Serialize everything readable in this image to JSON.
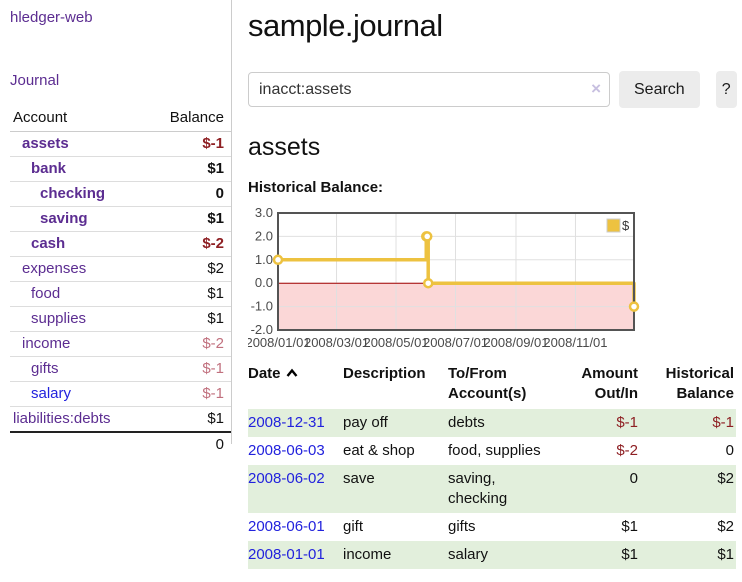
{
  "app": {
    "brand": "hledger-web",
    "nav": {
      "journal": "Journal"
    }
  },
  "sidebar": {
    "header": {
      "account": "Account",
      "balance": "Balance"
    },
    "accounts": [
      {
        "name": "assets",
        "balance": "$-1"
      },
      {
        "name": "bank",
        "balance": "$1"
      },
      {
        "name": "checking",
        "balance": "0"
      },
      {
        "name": "saving",
        "balance": "$1"
      },
      {
        "name": "cash",
        "balance": "$-2"
      },
      {
        "name": "expenses",
        "balance": "$2"
      },
      {
        "name": "food",
        "balance": "$1"
      },
      {
        "name": "supplies",
        "balance": "$1"
      },
      {
        "name": "income",
        "balance": "$-2"
      },
      {
        "name": "gifts",
        "balance": "$-1"
      },
      {
        "name": "salary",
        "balance": "$-1"
      },
      {
        "name": "liabilities:debts",
        "balance": "$1"
      }
    ],
    "total": "0"
  },
  "main": {
    "title": "sample.journal",
    "search": {
      "value": "inacct:assets",
      "clear": "×",
      "search_button": "Search",
      "help_button": "?"
    },
    "account_heading": "assets",
    "chart_title": "Historical Balance:"
  },
  "chart_data": {
    "type": "line",
    "subtype": "step",
    "title": "Historical Balance of assets",
    "x_unit": "days since 2008-01-01",
    "xlim": [
      0,
      365
    ],
    "ylim": [
      -2,
      3
    ],
    "grid": true,
    "series": [
      {
        "name": "$",
        "color": "#edc240",
        "point_dates": [
          "2008-01-01",
          "2008-06-01",
          "2008-06-02",
          "2008-06-03",
          "2008-12-31"
        ],
        "points": [
          [
            0,
            1
          ],
          [
            152,
            2
          ],
          [
            153,
            2
          ],
          [
            154,
            0
          ],
          [
            365,
            -1
          ]
        ]
      }
    ],
    "x_ticks": [
      {
        "d": 0,
        "label": "2008/01/01"
      },
      {
        "d": 60,
        "label": "2008/03/01"
      },
      {
        "d": 121,
        "label": "2008/05/01"
      },
      {
        "d": 182,
        "label": "2008/07/01"
      },
      {
        "d": 244,
        "label": "2008/09/01"
      },
      {
        "d": 305,
        "label": "2008/11/01"
      }
    ],
    "y_ticks": [
      {
        "v": 3,
        "label": "3.0"
      },
      {
        "v": 2,
        "label": "2.0"
      },
      {
        "v": 1,
        "label": "1.0"
      },
      {
        "v": 0,
        "label": "0.0"
      },
      {
        "v": -1,
        "label": "-1.0"
      },
      {
        "v": -2,
        "label": "-2.0"
      }
    ],
    "legend": {
      "label": "$",
      "position": "top-right"
    },
    "colors": {
      "line": "#edc240",
      "negative_region": "#fbd7d7",
      "zero_line": "#a40000",
      "border": "#545454",
      "gridline": "#e0e0e0",
      "tick_label": "#4a4a4a"
    }
  },
  "register": {
    "columns": {
      "date": "Date",
      "description": "Description",
      "accounts_l1": "To/From",
      "accounts_l2": "Account(s)",
      "amount_l1": "Amount",
      "amount_l2": "Out/In",
      "balance_l1": "Historical",
      "balance_l2": "Balance"
    },
    "rows": [
      {
        "date": "2008-12-31",
        "description": "pay off",
        "accounts": "debts",
        "amount": "$-1",
        "balance": "$-1"
      },
      {
        "date": "2008-06-03",
        "description": "eat & shop",
        "accounts": "food, supplies",
        "amount": "$-2",
        "balance": "0"
      },
      {
        "date": "2008-06-02",
        "description": "save",
        "accounts": "saving, checking",
        "amount": "0",
        "balance": "$2"
      },
      {
        "date": "2008-06-01",
        "description": "gift",
        "accounts": "gifts",
        "amount": "$1",
        "balance": "$2"
      },
      {
        "date": "2008-01-01",
        "description": "income",
        "accounts": "salary",
        "amount": "$1",
        "balance": "$1"
      }
    ]
  }
}
